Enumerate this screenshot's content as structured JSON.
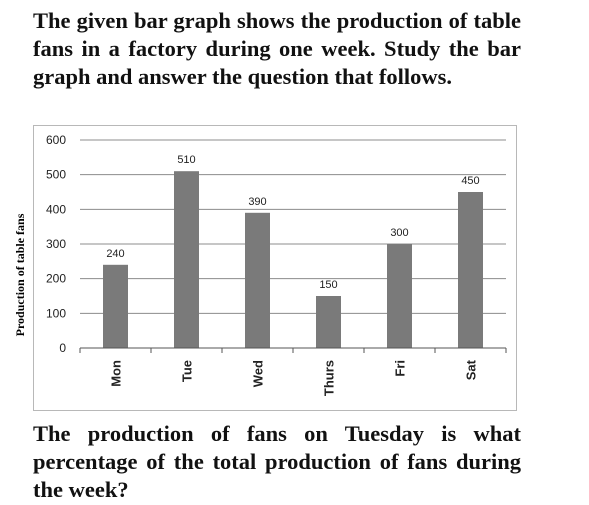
{
  "intro_text": "The given bar graph shows the production of table fans in a factory during one week. Study the bar graph and answer the  question that follows.",
  "question_text": "The production of fans on Tuesday is what percentage of the total production of fans during the week?",
  "chart_data": {
    "type": "bar",
    "title": "",
    "xlabel": "",
    "ylabel": "Production of table fans",
    "categories": [
      "Mon",
      "Tue",
      "Wed",
      "Thurs",
      "Fri",
      "Sat"
    ],
    "values": [
      240,
      510,
      390,
      150,
      300,
      450
    ],
    "ylim": [
      0,
      600
    ],
    "yticks": [
      0,
      100,
      200,
      300,
      400,
      500,
      600
    ],
    "bar_color": "#7a7a7a",
    "grid": true,
    "data_labels": true,
    "legend": "none"
  }
}
